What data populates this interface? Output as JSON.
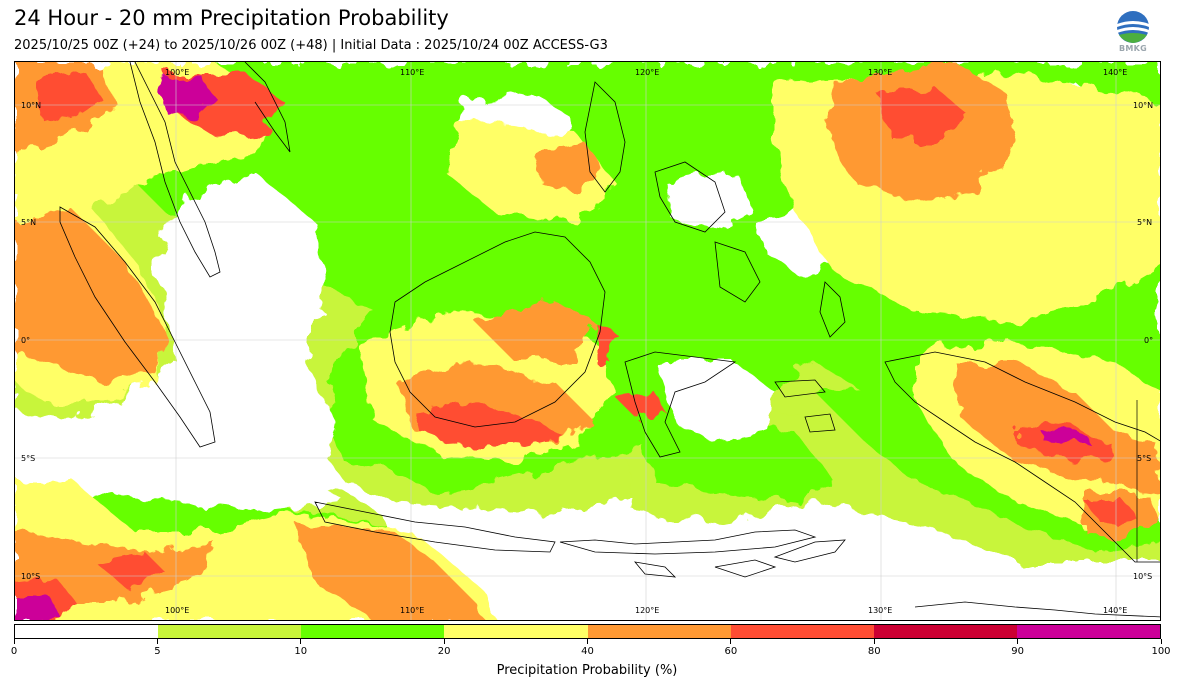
{
  "header": {
    "title": "24 Hour - 20 mm Precipitation Probability",
    "subtitle": "2025/10/25 00Z (+24) to 2025/10/26 00Z (+48) | Initial Data : 2025/10/24 00Z ACCESS-G3",
    "logo_text": "BMKG"
  },
  "map": {
    "lon_labels_top": [
      "100°E",
      "110°E",
      "120°E",
      "130°E",
      "140°E"
    ],
    "lon_labels_bottom": [
      "100°E",
      "110°E",
      "120°E",
      "130°E",
      "140°E"
    ],
    "lat_labels_left": [
      "10°N",
      "5°N",
      "0°",
      "5°S",
      "10°S"
    ],
    "lat_labels_right": [
      "10°N",
      "5°N",
      "0°",
      "5°S",
      "10°S"
    ]
  },
  "colorbar": {
    "title": "Precipitation Probability (%)",
    "ticks": [
      "0",
      "5",
      "10",
      "20",
      "40",
      "60",
      "80",
      "90",
      "100"
    ],
    "colors": [
      "#ffffff",
      "#c8f53a",
      "#66ff00",
      "#ffff66",
      "#ff9933",
      "#ff4d33",
      "#cc0033",
      "#cc0099"
    ]
  }
}
